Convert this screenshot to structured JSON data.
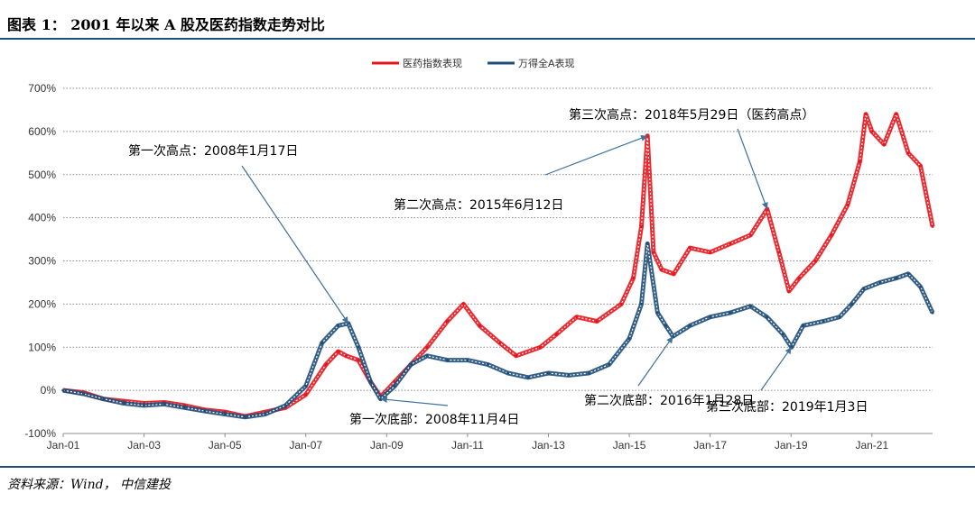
{
  "figure": {
    "title": "图表 1：  2001 年以来 A 股及医药指数走势对比",
    "source": "资料来源：Wind，  中信建投"
  },
  "chart_data": {
    "type": "line",
    "ylim": [
      -100,
      700
    ],
    "yticks": [
      -100,
      0,
      100,
      200,
      300,
      400,
      500,
      600,
      700
    ],
    "ytick_labels": [
      "-100%",
      "0%",
      "100%",
      "200%",
      "300%",
      "400%",
      "500%",
      "600%",
      "700%"
    ],
    "x_range": [
      2001.0,
      2022.5
    ],
    "xticks": [
      2001,
      2003,
      2005,
      2007,
      2009,
      2011,
      2013,
      2015,
      2017,
      2019,
      2021
    ],
    "xtick_labels": [
      "Jan-01",
      "Jan-03",
      "Jan-05",
      "Jan-07",
      "Jan-09",
      "Jan-11",
      "Jan-13",
      "Jan-15",
      "Jan-17",
      "Jan-19",
      "Jan-21"
    ],
    "grid": "horizontal-dotted",
    "legend_position": "top-center",
    "series": [
      {
        "name": "医药指数表现",
        "color": "#e8141c",
        "points": [
          [
            2001.0,
            0
          ],
          [
            2001.5,
            -5
          ],
          [
            2002.0,
            -20
          ],
          [
            2002.5,
            -25
          ],
          [
            2003.0,
            -30
          ],
          [
            2003.5,
            -28
          ],
          [
            2004.0,
            -35
          ],
          [
            2004.5,
            -45
          ],
          [
            2005.0,
            -50
          ],
          [
            2005.5,
            -60
          ],
          [
            2006.0,
            -50
          ],
          [
            2006.5,
            -40
          ],
          [
            2007.0,
            -10
          ],
          [
            2007.5,
            60
          ],
          [
            2007.8,
            90
          ],
          [
            2008.0,
            80
          ],
          [
            2008.3,
            70
          ],
          [
            2008.6,
            20
          ],
          [
            2008.85,
            -15
          ],
          [
            2009.2,
            20
          ],
          [
            2009.6,
            60
          ],
          [
            2010.0,
            100
          ],
          [
            2010.5,
            160
          ],
          [
            2010.9,
            200
          ],
          [
            2011.3,
            150
          ],
          [
            2011.8,
            110
          ],
          [
            2012.2,
            80
          ],
          [
            2012.8,
            100
          ],
          [
            2013.2,
            130
          ],
          [
            2013.7,
            170
          ],
          [
            2014.2,
            160
          ],
          [
            2014.8,
            200
          ],
          [
            2015.1,
            260
          ],
          [
            2015.3,
            380
          ],
          [
            2015.45,
            590
          ],
          [
            2015.6,
            320
          ],
          [
            2015.8,
            280
          ],
          [
            2016.1,
            270
          ],
          [
            2016.5,
            330
          ],
          [
            2017.0,
            320
          ],
          [
            2017.5,
            340
          ],
          [
            2018.0,
            360
          ],
          [
            2018.41,
            420
          ],
          [
            2018.7,
            320
          ],
          [
            2018.95,
            230
          ],
          [
            2019.2,
            260
          ],
          [
            2019.6,
            300
          ],
          [
            2020.0,
            360
          ],
          [
            2020.4,
            430
          ],
          [
            2020.7,
            530
          ],
          [
            2020.85,
            640
          ],
          [
            2021.0,
            600
          ],
          [
            2021.3,
            570
          ],
          [
            2021.6,
            640
          ],
          [
            2021.9,
            550
          ],
          [
            2022.2,
            520
          ],
          [
            2022.5,
            380
          ]
        ]
      },
      {
        "name": "万得全A表现",
        "color": "#1f4e79",
        "points": [
          [
            2001.0,
            0
          ],
          [
            2001.5,
            -8
          ],
          [
            2002.0,
            -20
          ],
          [
            2002.5,
            -30
          ],
          [
            2003.0,
            -35
          ],
          [
            2003.5,
            -32
          ],
          [
            2004.0,
            -40
          ],
          [
            2004.5,
            -48
          ],
          [
            2005.0,
            -55
          ],
          [
            2005.5,
            -62
          ],
          [
            2006.0,
            -55
          ],
          [
            2006.5,
            -35
          ],
          [
            2007.0,
            10
          ],
          [
            2007.4,
            110
          ],
          [
            2007.8,
            150
          ],
          [
            2008.05,
            155
          ],
          [
            2008.3,
            100
          ],
          [
            2008.6,
            20
          ],
          [
            2008.85,
            -20
          ],
          [
            2009.2,
            10
          ],
          [
            2009.6,
            60
          ],
          [
            2010.0,
            80
          ],
          [
            2010.5,
            70
          ],
          [
            2011.0,
            70
          ],
          [
            2011.5,
            60
          ],
          [
            2012.0,
            40
          ],
          [
            2012.5,
            30
          ],
          [
            2013.0,
            40
          ],
          [
            2013.5,
            35
          ],
          [
            2014.0,
            40
          ],
          [
            2014.5,
            60
          ],
          [
            2015.0,
            120
          ],
          [
            2015.3,
            200
          ],
          [
            2015.45,
            340
          ],
          [
            2015.7,
            180
          ],
          [
            2015.9,
            150
          ],
          [
            2016.08,
            125
          ],
          [
            2016.5,
            150
          ],
          [
            2017.0,
            170
          ],
          [
            2017.5,
            180
          ],
          [
            2018.0,
            195
          ],
          [
            2018.4,
            170
          ],
          [
            2018.8,
            130
          ],
          [
            2019.01,
            100
          ],
          [
            2019.3,
            150
          ],
          [
            2019.8,
            160
          ],
          [
            2020.2,
            170
          ],
          [
            2020.5,
            200
          ],
          [
            2020.8,
            235
          ],
          [
            2021.2,
            250
          ],
          [
            2021.6,
            260
          ],
          [
            2021.9,
            270
          ],
          [
            2022.2,
            240
          ],
          [
            2022.5,
            180
          ]
        ]
      }
    ],
    "annotations": [
      {
        "text": "第一次高点：2008年1月17日",
        "x": 2008.05,
        "y": 155,
        "label_anchor": "upper-left"
      },
      {
        "text": "第二次高点：2015年6月12日",
        "x": 2015.45,
        "y": 590,
        "label_anchor": "middle-left"
      },
      {
        "text": "第三次高点：2018年5月29日（医药高点）",
        "x": 2018.41,
        "y": 420,
        "label_anchor": "top"
      },
      {
        "text": "第一次底部：2008年11月4日",
        "x": 2008.85,
        "y": -20,
        "label_anchor": "bottom"
      },
      {
        "text": "第二次底部：2016年1月28日",
        "x": 2016.08,
        "y": 125,
        "label_anchor": "bottom"
      },
      {
        "text": "第三次底部：2019年1月3日",
        "x": 2019.01,
        "y": 100,
        "label_anchor": "bottom"
      }
    ]
  }
}
